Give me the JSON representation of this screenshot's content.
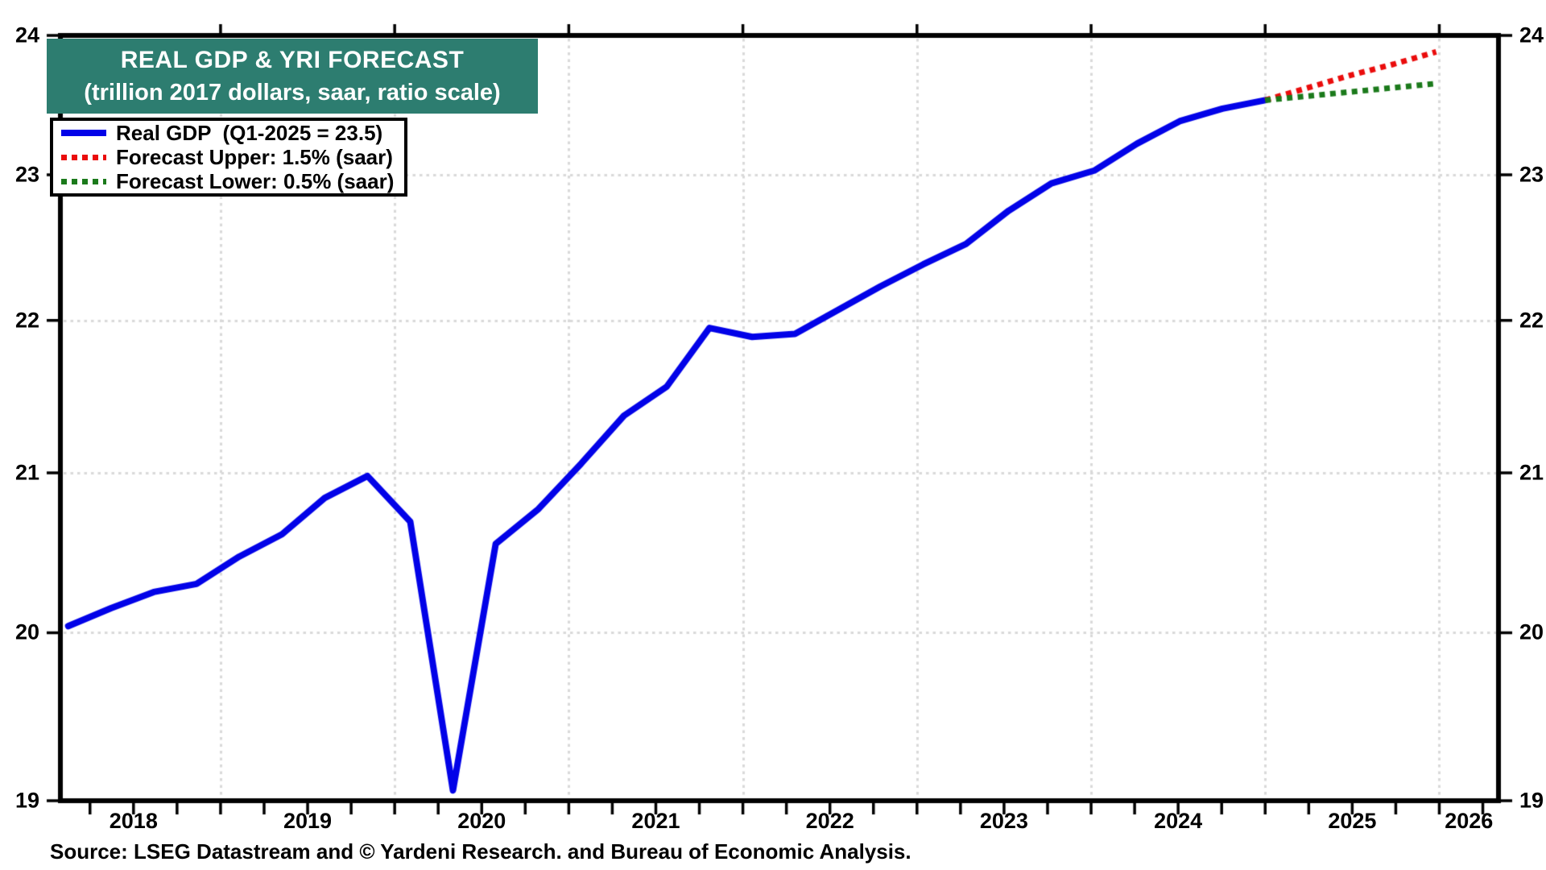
{
  "title": {
    "line1": "REAL GDP & YRI FORECAST",
    "line2": "(trillion 2017 dollars, saar, ratio scale)"
  },
  "legend": {
    "items": [
      {
        "label": "Real GDP  (Q1-2025 = 23.5)",
        "style": "solid",
        "color": "#0202e8"
      },
      {
        "label": "Forecast Upper: 1.5% (saar)",
        "style": "dotted",
        "color": "#ea0c0c"
      },
      {
        "label": "Forecast Lower: 0.5% (saar)",
        "style": "dotted",
        "color": "#1b7a1b"
      }
    ]
  },
  "source_note": "Source: LSEG Datastream and © Yardeni Research. and Bureau of Economic Analysis.",
  "colors": {
    "background": "#ffffff",
    "header_bg": "#2d7d70",
    "header_text": "#ffffff",
    "grid": "#d9d9d9",
    "axis": "#000000",
    "real_gdp": "#0202e8",
    "forecast_upper": "#ea0c0c",
    "forecast_lower": "#1b7a1b"
  },
  "chart_data": {
    "type": "line",
    "title": "REAL GDP & YRI FORECAST",
    "subtitle": "(trillion 2017 dollars, saar, ratio scale)",
    "y_axis": {
      "scale": "log-ratio",
      "min": 19,
      "max": 24,
      "ticks_left": [
        24,
        23,
        22,
        21,
        20,
        19
      ],
      "ticks_right": [
        24,
        23,
        22,
        21,
        20,
        19
      ],
      "gridline_values": [
        20,
        21,
        22,
        23
      ]
    },
    "x_axis": {
      "year_labels": [
        "2018",
        "2019",
        "2020",
        "2021",
        "2022",
        "2023",
        "2024",
        "2025",
        "2026"
      ],
      "gridline_years": [
        2019,
        2020,
        2021,
        2022,
        2023,
        2024,
        2025,
        2026
      ],
      "minor_ticks": "quarterly"
    },
    "series": [
      {
        "name": "Real GDP",
        "legend_label": "Real GDP  (Q1-2025 = 23.5)",
        "style": "solid",
        "color": "#0202e8",
        "quarters": [
          "2018-Q1",
          "2018-Q2",
          "2018-Q3",
          "2018-Q4",
          "2019-Q1",
          "2019-Q2",
          "2019-Q3",
          "2019-Q4",
          "2020-Q1",
          "2020-Q2",
          "2020-Q3",
          "2020-Q4",
          "2021-Q1",
          "2021-Q2",
          "2021-Q3",
          "2021-Q4",
          "2022-Q1",
          "2022-Q2",
          "2022-Q3",
          "2022-Q4",
          "2023-Q1",
          "2023-Q2",
          "2023-Q3",
          "2023-Q4",
          "2024-Q1",
          "2024-Q2",
          "2024-Q3",
          "2024-Q4",
          "2025-Q1"
        ],
        "values": [
          20.04,
          20.15,
          20.25,
          20.3,
          20.47,
          20.61,
          20.84,
          20.98,
          20.69,
          19.06,
          20.55,
          20.77,
          21.06,
          21.37,
          21.56,
          21.95,
          21.89,
          21.91,
          22.07,
          22.23,
          22.38,
          22.52,
          22.75,
          22.94,
          23.03,
          23.22,
          23.38,
          23.47,
          23.53
        ]
      },
      {
        "name": "Forecast Upper",
        "legend_label": "Forecast Upper: 1.5% (saar)",
        "style": "dotted",
        "color": "#ea0c0c",
        "rate_saar_pct": 1.5,
        "quarters": [
          "2025-Q2",
          "2025-Q3",
          "2025-Q4",
          "2026-Q1"
        ],
        "values": [
          23.62,
          23.71,
          23.79,
          23.88
        ]
      },
      {
        "name": "Forecast Lower",
        "legend_label": "Forecast Lower: 0.5% (saar)",
        "style": "dotted",
        "color": "#1b7a1b",
        "rate_saar_pct": 0.5,
        "quarters": [
          "2025-Q2",
          "2025-Q3",
          "2025-Q4",
          "2026-Q1"
        ],
        "values": [
          23.56,
          23.59,
          23.62,
          23.65
        ]
      }
    ]
  }
}
